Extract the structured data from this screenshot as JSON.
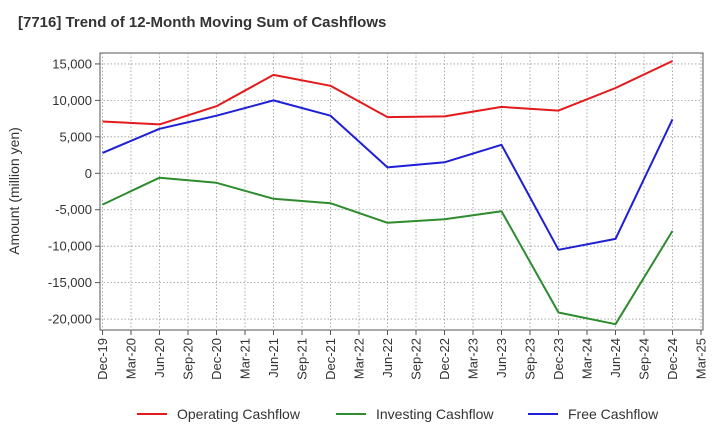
{
  "chart_data": {
    "type": "line",
    "title": "[7716]  Trend of 12-Month Moving Sum of Cashflows",
    "xlabel": "",
    "ylabel": "Amount (million yen)",
    "x_ticks": [
      "Dec-19",
      "Mar-20",
      "Jun-20",
      "Sep-20",
      "Dec-20",
      "Mar-21",
      "Jun-21",
      "Sep-21",
      "Dec-21",
      "Mar-22",
      "Jun-22",
      "Sep-22",
      "Dec-22",
      "Mar-23",
      "Jun-23",
      "Sep-23",
      "Dec-23",
      "Mar-24",
      "Jun-24",
      "Sep-24",
      "Dec-24",
      "Mar-25"
    ],
    "y_ticks": [
      15000,
      10000,
      5000,
      0,
      -5000,
      -10000,
      -15000,
      -20000
    ],
    "y_tick_labels": [
      "15,000",
      "10,000",
      "5,000",
      "0",
      "-5,000",
      "-10,000",
      "-15,000",
      "-20,000"
    ],
    "ylim": [
      -21500,
      16500
    ],
    "grid": true,
    "legend_position": "bottom",
    "series": [
      {
        "name": "Operating Cashflow",
        "color": "#e31a1c",
        "x": [
          "Dec-19",
          "Jun-20",
          "Dec-20",
          "Jun-21",
          "Dec-21",
          "Jun-22",
          "Dec-22",
          "Jun-23",
          "Dec-23",
          "Jun-24",
          "Dec-24"
        ],
        "values": [
          7100,
          6700,
          9200,
          13500,
          12000,
          7700,
          7800,
          9100,
          8600,
          11700,
          15400
        ]
      },
      {
        "name": "Investing Cashflow",
        "color": "#2e8b2e",
        "x": [
          "Dec-19",
          "Jun-20",
          "Dec-20",
          "Jun-21",
          "Dec-21",
          "Jun-22",
          "Dec-22",
          "Jun-23",
          "Dec-23",
          "Jun-24",
          "Dec-24"
        ],
        "values": [
          -4300,
          -600,
          -1300,
          -3500,
          -4100,
          -6800,
          -6300,
          -5200,
          -19100,
          -20700,
          -7900
        ]
      },
      {
        "name": "Free Cashflow",
        "color": "#1f1fd6",
        "x": [
          "Dec-19",
          "Jun-20",
          "Dec-20",
          "Jun-21",
          "Dec-21",
          "Jun-22",
          "Dec-22",
          "Jun-23",
          "Dec-23",
          "Jun-24",
          "Dec-24"
        ],
        "values": [
          2800,
          6100,
          7900,
          10000,
          7900,
          800,
          1500,
          3900,
          -10500,
          -9000,
          7400
        ]
      }
    ]
  }
}
